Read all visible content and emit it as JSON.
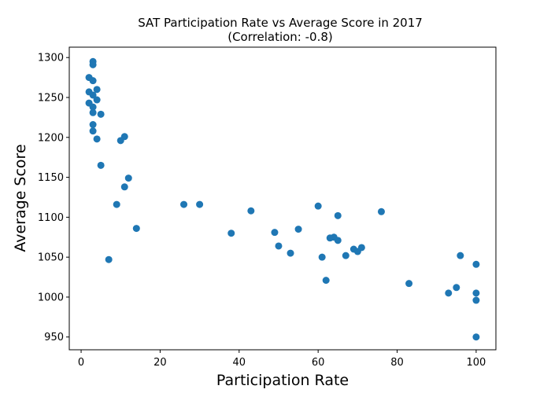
{
  "chart_data": {
    "type": "scatter",
    "title": "SAT Participation Rate vs Average Score in 2017",
    "subtitle": "(Correlation: -0.8)",
    "xlabel": "Participation Rate",
    "ylabel": "Average Score",
    "xlim": [
      -3,
      105
    ],
    "ylim": [
      934,
      1313
    ],
    "xticks": [
      0,
      20,
      40,
      60,
      80,
      100
    ],
    "yticks": [
      950,
      1000,
      1050,
      1100,
      1150,
      1200,
      1250,
      1300
    ],
    "xtick_labels": [
      "0",
      "20",
      "40",
      "60",
      "80",
      "100"
    ],
    "ytick_labels": [
      "950",
      "1000",
      "1050",
      "1100",
      "1150",
      "1200",
      "1250",
      "1300"
    ],
    "grid": false,
    "marker_color": "#1f77b4",
    "points": [
      {
        "x": 3,
        "y": 1295
      },
      {
        "x": 3,
        "y": 1291
      },
      {
        "x": 2,
        "y": 1275
      },
      {
        "x": 3,
        "y": 1271
      },
      {
        "x": 4,
        "y": 1260
      },
      {
        "x": 2,
        "y": 1257
      },
      {
        "x": 3,
        "y": 1253
      },
      {
        "x": 4,
        "y": 1247
      },
      {
        "x": 2,
        "y": 1243
      },
      {
        "x": 3,
        "y": 1238
      },
      {
        "x": 3,
        "y": 1231
      },
      {
        "x": 5,
        "y": 1229
      },
      {
        "x": 3,
        "y": 1216
      },
      {
        "x": 3,
        "y": 1208
      },
      {
        "x": 4,
        "y": 1198
      },
      {
        "x": 10,
        "y": 1196
      },
      {
        "x": 11,
        "y": 1201
      },
      {
        "x": 5,
        "y": 1165
      },
      {
        "x": 12,
        "y": 1149
      },
      {
        "x": 11,
        "y": 1138
      },
      {
        "x": 9,
        "y": 1116
      },
      {
        "x": 14,
        "y": 1086
      },
      {
        "x": 7,
        "y": 1047
      },
      {
        "x": 26,
        "y": 1116
      },
      {
        "x": 30,
        "y": 1116
      },
      {
        "x": 38,
        "y": 1080
      },
      {
        "x": 43,
        "y": 1108
      },
      {
        "x": 49,
        "y": 1081
      },
      {
        "x": 50,
        "y": 1064
      },
      {
        "x": 53,
        "y": 1055
      },
      {
        "x": 55,
        "y": 1085
      },
      {
        "x": 60,
        "y": 1114
      },
      {
        "x": 61,
        "y": 1050
      },
      {
        "x": 62,
        "y": 1021
      },
      {
        "x": 63,
        "y": 1074
      },
      {
        "x": 64,
        "y": 1075
      },
      {
        "x": 65,
        "y": 1071
      },
      {
        "x": 65,
        "y": 1102
      },
      {
        "x": 67,
        "y": 1052
      },
      {
        "x": 69,
        "y": 1060
      },
      {
        "x": 70,
        "y": 1057
      },
      {
        "x": 71,
        "y": 1062
      },
      {
        "x": 76,
        "y": 1107
      },
      {
        "x": 83,
        "y": 1017
      },
      {
        "x": 93,
        "y": 1005
      },
      {
        "x": 95,
        "y": 1012
      },
      {
        "x": 96,
        "y": 1052
      },
      {
        "x": 100,
        "y": 1041
      },
      {
        "x": 100,
        "y": 1005
      },
      {
        "x": 100,
        "y": 996
      },
      {
        "x": 100,
        "y": 950
      }
    ]
  }
}
